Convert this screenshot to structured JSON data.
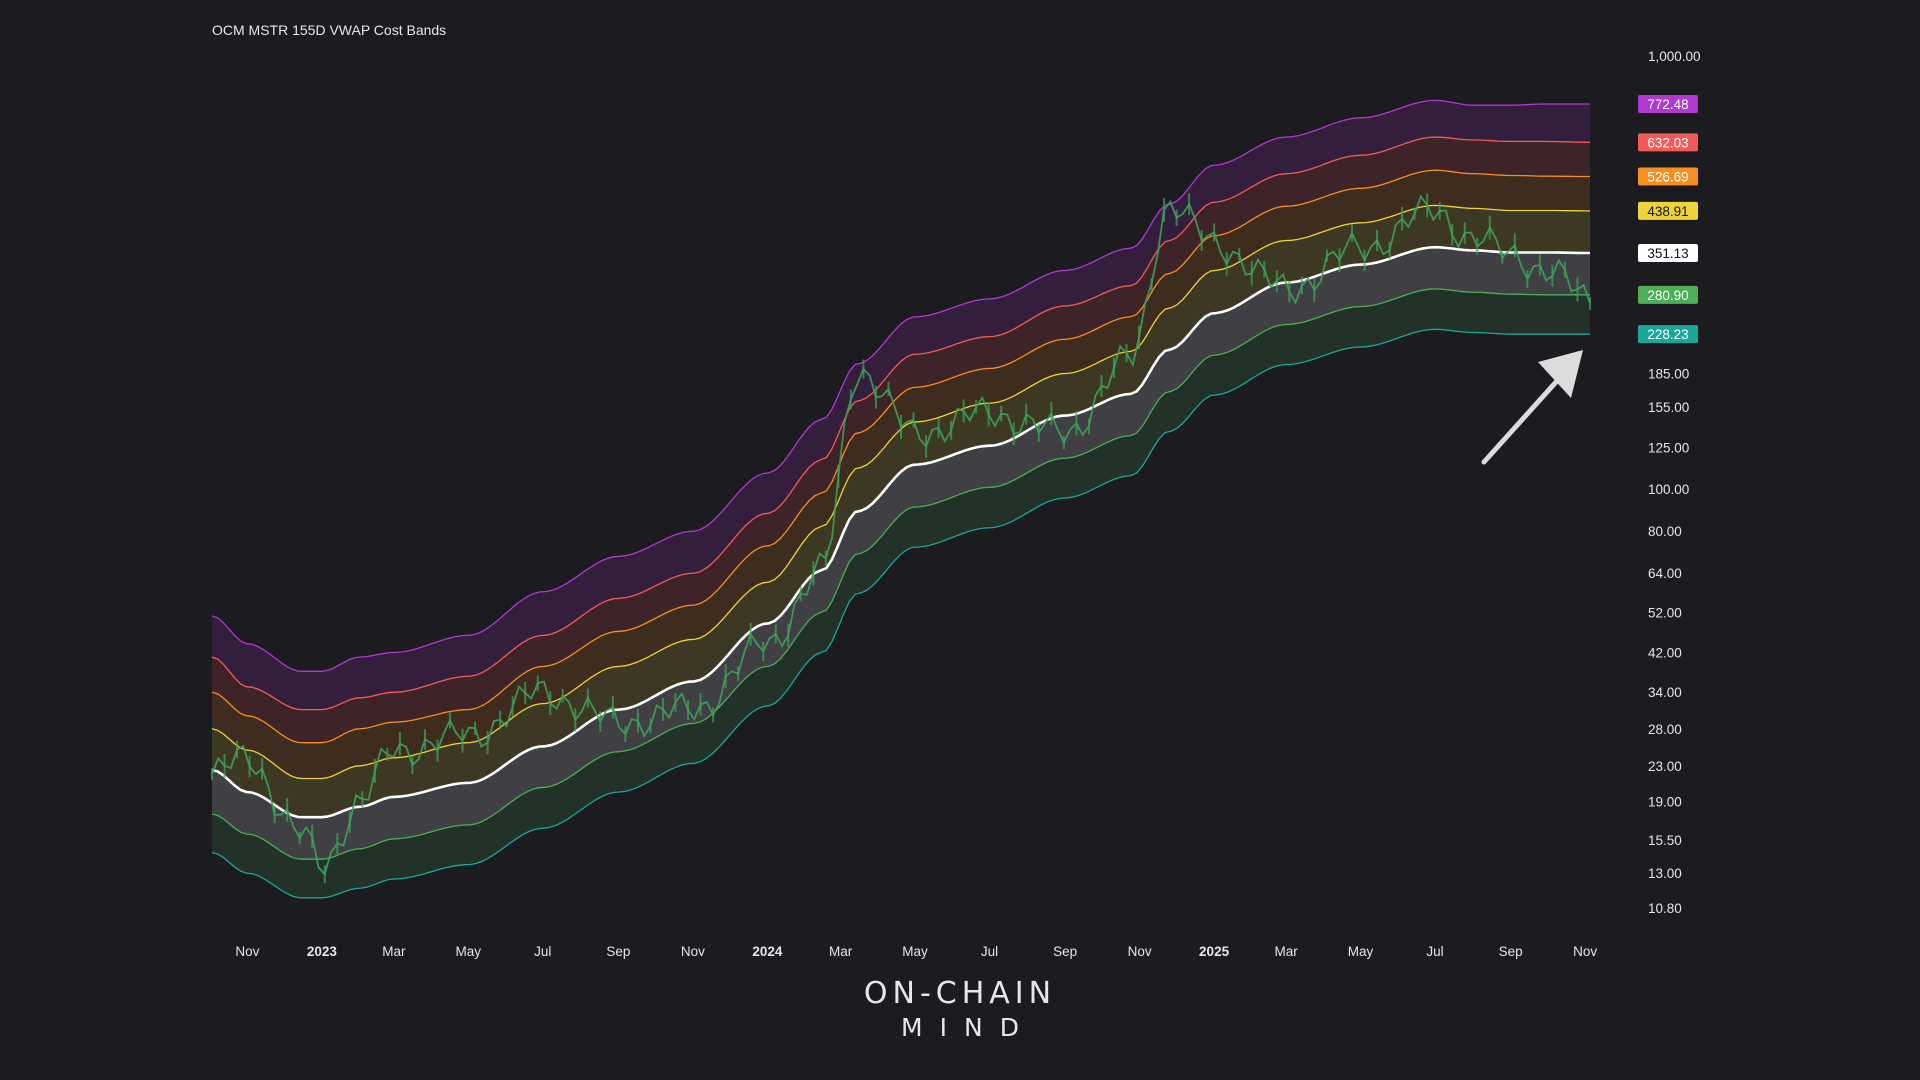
{
  "title": "OCM MSTR 155D VWAP Cost Bands",
  "logo": {
    "line1": "ON-CHAIN",
    "line2": "MIND"
  },
  "colors": {
    "background": "#1c1b20",
    "price": "#3fa05a",
    "band_top": "#b03ad0",
    "band_2": "#f25a5a",
    "band_3": "#f58f1f",
    "band_4": "#ecd43a",
    "vwap": "#ffffff",
    "band_6": "#4cae57",
    "band_bottom": "#1aa79a",
    "arrow": "#dcdcdc"
  },
  "chart_data": {
    "type": "line",
    "title": "OCM MSTR 155D VWAP Cost Bands",
    "y_scale": "log",
    "ylim": [
      10.8,
      1000
    ],
    "y_ticks": [
      "1,000.00",
      "185.00",
      "155.00",
      "125.00",
      "100.00",
      "80.00",
      "64.00",
      "52.00",
      "42.00",
      "34.00",
      "28.00",
      "23.00",
      "19.00",
      "15.50",
      "13.00",
      "10.80"
    ],
    "y_tick_values": [
      1000,
      185,
      155,
      125,
      100,
      80,
      64,
      52,
      42,
      34,
      28,
      23,
      19,
      15.5,
      13,
      10.8
    ],
    "x_ticks": [
      {
        "label": "Nov",
        "date": "2022-11-01",
        "year": false
      },
      {
        "label": "2023",
        "date": "2023-01-01",
        "year": true
      },
      {
        "label": "Mar",
        "date": "2023-03-01",
        "year": false
      },
      {
        "label": "May",
        "date": "2023-05-01",
        "year": false
      },
      {
        "label": "Jul",
        "date": "2023-07-01",
        "year": false
      },
      {
        "label": "Sep",
        "date": "2023-09-01",
        "year": false
      },
      {
        "label": "Nov",
        "date": "2023-11-01",
        "year": false
      },
      {
        "label": "2024",
        "date": "2024-01-01",
        "year": true
      },
      {
        "label": "Mar",
        "date": "2024-03-01",
        "year": false
      },
      {
        "label": "May",
        "date": "2024-05-01",
        "year": false
      },
      {
        "label": "Jul",
        "date": "2024-07-01",
        "year": false
      },
      {
        "label": "Sep",
        "date": "2024-09-01",
        "year": false
      },
      {
        "label": "Nov",
        "date": "2024-11-01",
        "year": false
      },
      {
        "label": "2025",
        "date": "2025-01-01",
        "year": true
      },
      {
        "label": "Mar",
        "date": "2025-03-01",
        "year": false
      },
      {
        "label": "May",
        "date": "2025-05-01",
        "year": false
      },
      {
        "label": "Jul",
        "date": "2025-07-01",
        "year": false
      },
      {
        "label": "Sep",
        "date": "2025-09-01",
        "year": false
      },
      {
        "label": "Nov",
        "date": "2025-11-01",
        "year": false
      }
    ],
    "xlim": [
      "2022-10-03",
      "2025-11-05"
    ],
    "x": [
      "2022-10-03",
      "2022-11-01",
      "2022-12-15",
      "2023-01-01",
      "2023-02-01",
      "2023-03-01",
      "2023-05-01",
      "2023-07-01",
      "2023-09-01",
      "2023-11-01",
      "2024-01-01",
      "2024-02-15",
      "2024-03-15",
      "2024-05-01",
      "2024-07-01",
      "2024-09-01",
      "2024-10-25",
      "2024-11-25",
      "2025-01-01",
      "2025-03-01",
      "2025-05-01",
      "2025-07-01",
      "2025-08-01",
      "2025-09-01",
      "2025-10-01",
      "2025-11-05"
    ],
    "series": [
      {
        "key": "band_top",
        "values": [
          51,
          44,
          38,
          38,
          41,
          42,
          46,
          58,
          70,
          80,
          109,
          145,
          195,
          250,
          275,
          320,
          360,
          455,
          560,
          650,
          720,
          790,
          770,
          770,
          775,
          775
        ],
        "end_label": "772.48"
      },
      {
        "key": "band_2",
        "values": [
          41,
          35,
          31,
          31,
          33,
          34,
          37,
          46,
          56,
          64,
          88,
          117,
          160,
          205,
          225,
          265,
          295,
          375,
          460,
          535,
          590,
          650,
          640,
          635,
          635,
          632
        ],
        "end_label": "632.03"
      },
      {
        "key": "band_3",
        "values": [
          34,
          30,
          26,
          26,
          28,
          29,
          31,
          39,
          47,
          54,
          74,
          98,
          135,
          172,
          190,
          222,
          250,
          315,
          385,
          450,
          495,
          545,
          535,
          530,
          528,
          527
        ],
        "end_label": "526.69"
      },
      {
        "key": "band_4",
        "values": [
          28,
          25,
          21.5,
          21.5,
          23,
          24,
          26,
          32,
          39,
          45,
          61,
          82,
          112,
          143,
          158,
          185,
          208,
          262,
          320,
          375,
          412,
          452,
          445,
          440,
          440,
          439
        ],
        "end_label": "438.91"
      },
      {
        "key": "band_vwap",
        "values": [
          22.5,
          20,
          17.5,
          17.5,
          18.5,
          19.5,
          21,
          25.5,
          31,
          36,
          49,
          65,
          89,
          114,
          126,
          148,
          166,
          210,
          255,
          300,
          330,
          362,
          356,
          352,
          352,
          351
        ],
        "end_label": "351.13"
      },
      {
        "key": "band_6",
        "values": [
          17.8,
          16,
          14,
          14,
          14.8,
          15.6,
          16.8,
          20.5,
          24.8,
          28.8,
          39,
          52,
          71,
          91,
          101,
          118,
          133,
          168,
          204,
          240,
          264,
          290,
          285,
          282,
          281,
          281
        ],
        "end_label": "280.90"
      },
      {
        "key": "band_bottom",
        "values": [
          14.5,
          13,
          11.4,
          11.4,
          12,
          12.6,
          13.6,
          16.5,
          20,
          23.3,
          31.6,
          42,
          57.5,
          73.5,
          81.5,
          95.5,
          107.5,
          136,
          165,
          194,
          213,
          234,
          230,
          228,
          228,
          228
        ],
        "end_label": "228.23"
      },
      {
        "key": "price",
        "values": [
          22,
          24,
          16,
          13.5,
          19,
          25,
          27,
          34,
          29,
          31,
          44,
          65,
          190,
          135,
          150,
          135,
          200,
          455,
          370,
          290,
          360,
          440,
          380,
          350,
          320,
          275
        ]
      }
    ],
    "end_labels": [
      "772.48",
      "632.03",
      "526.69",
      "438.91",
      "351.13",
      "280.90",
      "228.23"
    ],
    "legend": "none",
    "grid": false,
    "annotation": "arrow pointing to latest price near lower band"
  }
}
